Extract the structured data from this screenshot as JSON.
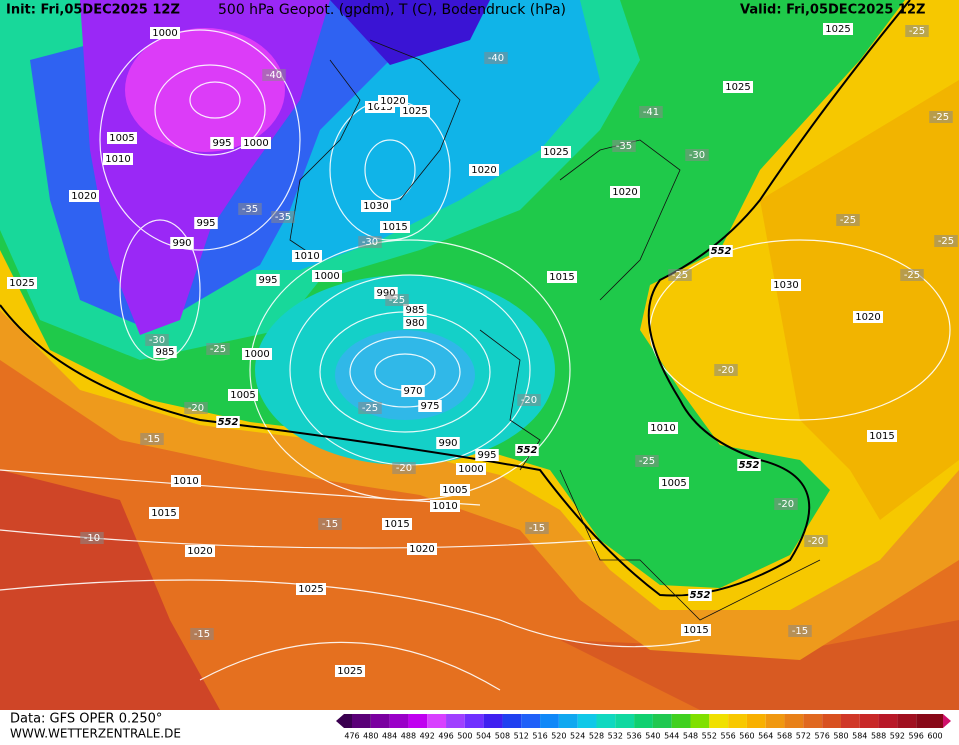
{
  "header": {
    "init": "Init: Fri,05DEC2025 12Z",
    "title": "500 hPa Geopot. (gpdm), T (C), Bodendruck (hPa)",
    "valid": "Valid: Fri,05DEC2025 12Z"
  },
  "map": {
    "pressure_labels": [
      "1000",
      "1005",
      "1010",
      "1020",
      "1025",
      "995",
      "1000",
      "995",
      "990",
      "985",
      "995",
      "1000",
      "1005",
      "1010",
      "1000",
      "1015",
      "1020",
      "1025",
      "1030",
      "1015",
      "1020",
      "1025",
      "1025",
      "1025",
      "1020",
      "1015",
      "990",
      "985",
      "980",
      "970",
      "975",
      "990",
      "995",
      "1000",
      "1005",
      "1010",
      "1015",
      "1020",
      "1010",
      "1015",
      "1020",
      "1025",
      "1025",
      "1030",
      "1020",
      "1015",
      "1010",
      "1005",
      "1015"
    ],
    "temperature_labels": [
      "-40",
      "-40",
      "-41",
      "-35",
      "-30",
      "-35",
      "-35",
      "-30",
      "-25",
      "-30",
      "-25",
      "-20",
      "-25",
      "-20",
      "-20",
      "-15",
      "-15",
      "-15",
      "-10",
      "-15",
      "-25",
      "-25",
      "-25",
      "-25",
      "-25",
      "-25",
      "-20",
      "-25",
      "-20",
      "-20",
      "-15"
    ],
    "contour_labels": [
      "552",
      "552",
      "552",
      "552",
      "552"
    ]
  },
  "footer": {
    "data_source": "Data: GFS OPER 0.250°",
    "website": "WWW.WETTERZENTRALE.DE",
    "colorbar_labels": [
      476,
      480,
      484,
      488,
      492,
      496,
      500,
      504,
      508,
      512,
      516,
      520,
      524,
      528,
      532,
      536,
      540,
      544,
      548,
      552,
      556,
      560,
      564,
      568,
      572,
      576,
      580,
      584,
      588,
      592,
      596,
      600
    ]
  }
}
